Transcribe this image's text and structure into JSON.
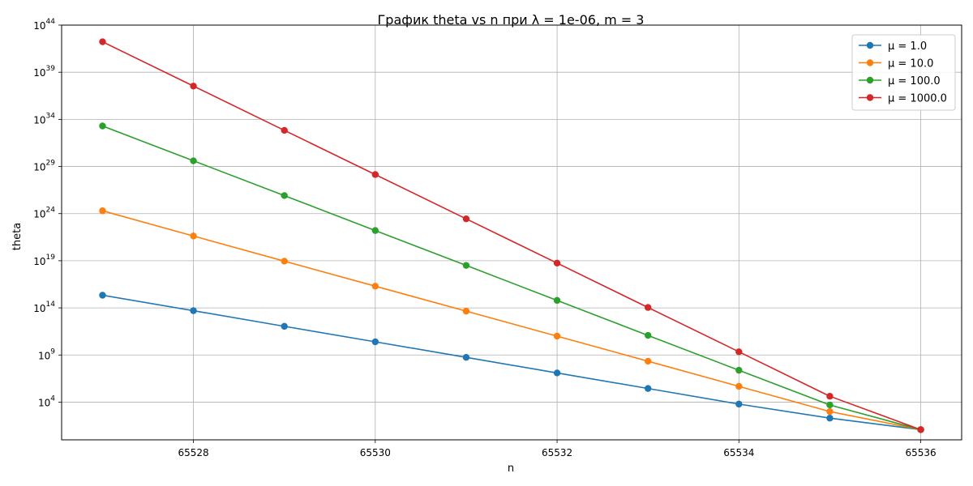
{
  "chart_data": {
    "type": "line",
    "title": "График theta vs n при λ = 1e-06, m = 3",
    "xlabel": "n",
    "ylabel": "theta",
    "x": [
      65527,
      65528,
      65529,
      65530,
      65531,
      65532,
      65533,
      65534,
      65535,
      65536
    ],
    "xlim": [
      65526.55,
      65536.45
    ],
    "ylim": [
      1.0,
      1e+44
    ],
    "yscale": "log",
    "xticks": [
      65528,
      65530,
      65532,
      65534,
      65536
    ],
    "yticks": [
      {
        "value": 10000.0,
        "base": "10",
        "exp": "4"
      },
      {
        "value": 1000000000.0,
        "base": "10",
        "exp": "9"
      },
      {
        "value": 100000000000000.0,
        "base": "10",
        "exp": "14"
      },
      {
        "value": 1e+19,
        "base": "10",
        "exp": "19"
      },
      {
        "value": 1e+24,
        "base": "10",
        "exp": "24"
      },
      {
        "value": 1e+29,
        "base": "10",
        "exp": "29"
      },
      {
        "value": 1e+34,
        "base": "10",
        "exp": "34"
      },
      {
        "value": 1e+39,
        "base": "10",
        "exp": "39"
      },
      {
        "value": 1e+44,
        "base": "10",
        "exp": "44"
      }
    ],
    "grid": true,
    "legend_position": "top-right",
    "series": [
      {
        "name": "μ = 1.0",
        "color": "#1f77b4",
        "values": [
          2200000000000000.0,
          50000000000000.0,
          1100000000000.0,
          25000000000.0,
          560000000.0,
          12500000.0,
          280000.0,
          6200.0,
          200,
          12
        ]
      },
      {
        "name": "μ = 10.0",
        "color": "#ff7f0e",
        "values": [
          2e+24,
          4.2e+21,
          9e+18,
          2e+16,
          45000000000000.0,
          100000000000.0,
          220000000.0,
          470000.0,
          1000,
          12
        ]
      },
      {
        "name": "μ = 100.0",
        "color": "#2ca02c",
        "values": [
          2e+33,
          4e+29,
          8.2e+25,
          1.6e+22,
          3.2e+18,
          620000000000000.0,
          120000000000.0,
          24000000.0,
          5000,
          12
        ]
      },
      {
        "name": "μ = 1000.0",
        "color": "#d62728",
        "values": [
          1.7e+42,
          3.4e+37,
          6.8e+32,
          1.4e+28,
          2.8e+23,
          5.6e+18,
          110000000000000.0,
          2200000000.0,
          42000.0,
          12
        ]
      }
    ]
  }
}
